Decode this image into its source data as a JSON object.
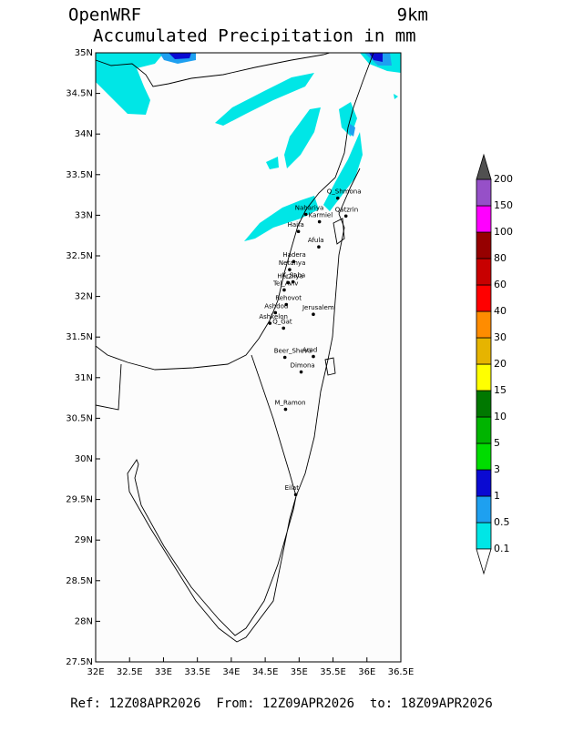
{
  "header": {
    "model": "OpenWRF",
    "resolution": "9km",
    "title": "Accumulated Precipitation in mm"
  },
  "map": {
    "xlim": [
      32,
      36.5
    ],
    "ylim": [
      27.5,
      35
    ],
    "xticks": [
      {
        "value": 32,
        "label": "32E"
      },
      {
        "value": 32.5,
        "label": "32.5E"
      },
      {
        "value": 33,
        "label": "33E"
      },
      {
        "value": 33.5,
        "label": "33.5E"
      },
      {
        "value": 34,
        "label": "34E"
      },
      {
        "value": 34.5,
        "label": "34.5E"
      },
      {
        "value": 35,
        "label": "35E"
      },
      {
        "value": 35.5,
        "label": "35.5E"
      },
      {
        "value": 36,
        "label": "36E"
      },
      {
        "value": 36.5,
        "label": "36.5E"
      }
    ],
    "yticks": [
      {
        "value": 27.5,
        "label": "27.5N"
      },
      {
        "value": 28,
        "label": "28N"
      },
      {
        "value": 28.5,
        "label": "28.5N"
      },
      {
        "value": 29,
        "label": "29N"
      },
      {
        "value": 29.5,
        "label": "29.5N"
      },
      {
        "value": 30,
        "label": "30N"
      },
      {
        "value": 30.5,
        "label": "30.5N"
      },
      {
        "value": 31,
        "label": "31N"
      },
      {
        "value": 31.5,
        "label": "31.5N"
      },
      {
        "value": 32,
        "label": "32N"
      },
      {
        "value": 32.5,
        "label": "32.5N"
      },
      {
        "value": 33,
        "label": "33N"
      },
      {
        "value": 33.5,
        "label": "33.5N"
      },
      {
        "value": 34,
        "label": "34N"
      },
      {
        "value": 34.5,
        "label": "34.5N"
      },
      {
        "value": 35,
        "label": "35N"
      }
    ],
    "cities": [
      {
        "name": "Q_Shmona",
        "lon": 35.57,
        "lat": 33.21
      },
      {
        "name": "Nahariya",
        "lon": 35.1,
        "lat": 33.01
      },
      {
        "name": "Karmiel",
        "lon": 35.3,
        "lat": 32.92
      },
      {
        "name": "Qatzrin",
        "lon": 35.69,
        "lat": 32.99
      },
      {
        "name": "Haifa",
        "lon": 34.99,
        "lat": 32.8
      },
      {
        "name": "Afula",
        "lon": 35.29,
        "lat": 32.61
      },
      {
        "name": "Hadera",
        "lon": 34.92,
        "lat": 32.43
      },
      {
        "name": "Netanya",
        "lon": 34.86,
        "lat": 32.33
      },
      {
        "name": "Herzliya",
        "lon": 34.84,
        "lat": 32.17
      },
      {
        "name": "K_Saba",
        "lon": 34.91,
        "lat": 32.18
      },
      {
        "name": "Tel_Aviv",
        "lon": 34.78,
        "lat": 32.08
      },
      {
        "name": "Rehovot",
        "lon": 34.81,
        "lat": 31.9
      },
      {
        "name": "Ashdod",
        "lon": 34.65,
        "lat": 31.8
      },
      {
        "name": "Ashkelon",
        "lon": 34.57,
        "lat": 31.67
      },
      {
        "name": "Q_Gat",
        "lon": 34.77,
        "lat": 31.61
      },
      {
        "name": "Jerusalem",
        "lon": 35.21,
        "lat": 31.78
      },
      {
        "name": "Beer_Sheva",
        "lon": 34.79,
        "lat": 31.25
      },
      {
        "name": "Arad",
        "lon": 35.21,
        "lat": 31.26
      },
      {
        "name": "Dimona",
        "lon": 35.03,
        "lat": 31.07
      },
      {
        "name": "M_Ramon",
        "lon": 34.8,
        "lat": 30.61
      },
      {
        "name": "Eilat",
        "lon": 34.95,
        "lat": 29.56
      }
    ]
  },
  "colorbar": {
    "levels": [
      0.1,
      0.5,
      1,
      3,
      5,
      10,
      15,
      20,
      30,
      40,
      60,
      80,
      100,
      150,
      200
    ],
    "colors": [
      "#00e6e6",
      "#1ea0f0",
      "#0a0ad2",
      "#00dc00",
      "#00b400",
      "#007800",
      "#ffff00",
      "#e6b400",
      "#ff8c00",
      "#ff0000",
      "#c80000",
      "#960000",
      "#ff00ff",
      "#9650c8"
    ],
    "over_color": "#505050",
    "under_color": "#ffffff"
  },
  "footer": "Ref: 12Z08APR2026  From: 12Z09APR2026  to: 18Z09APR2026"
}
